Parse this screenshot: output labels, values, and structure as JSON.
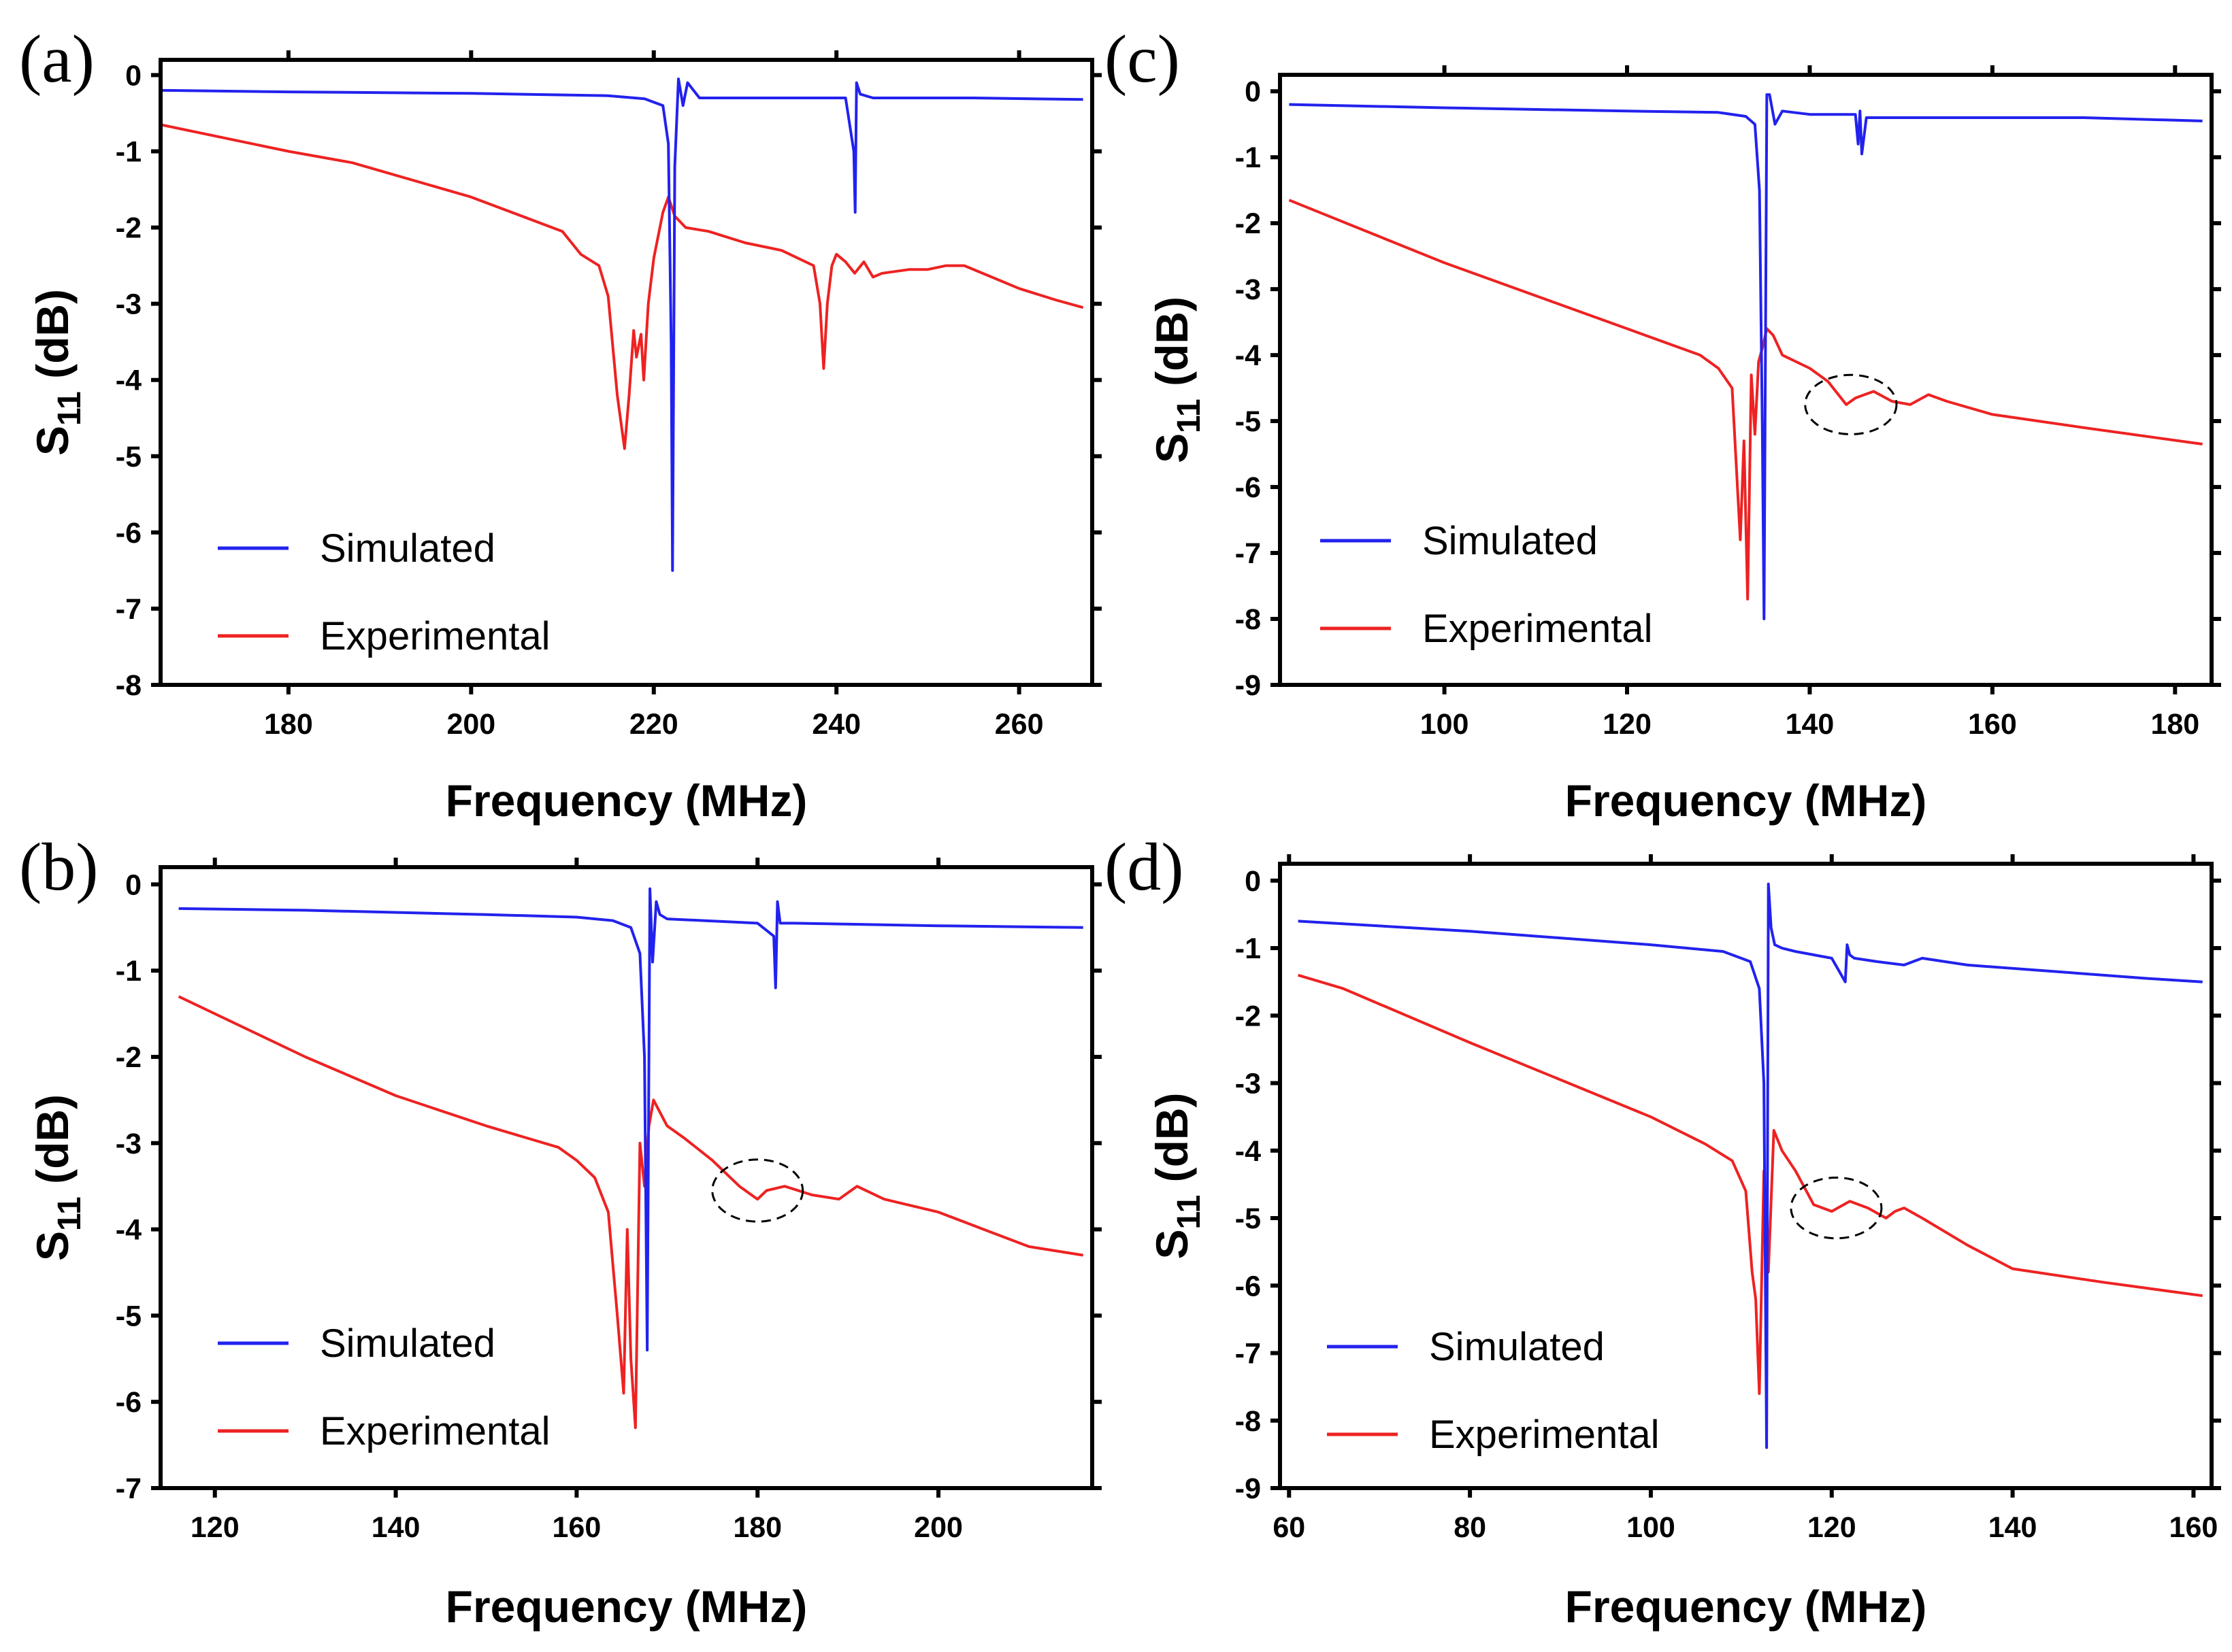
{
  "chart_data": [
    {
      "type": "line",
      "panel": "(a)",
      "xlabel": "Frequency (MHz)",
      "ylabel": "S11 (dB)",
      "ylabel_main": "S",
      "ylabel_sub": "11",
      "ylabel_unit": " (dB)",
      "xlim": [
        166,
        268
      ],
      "ylim": [
        -8,
        0.2
      ],
      "xticks": [
        180,
        200,
        220,
        240,
        260
      ],
      "yticks": [
        0,
        -1,
        -2,
        -3,
        -4,
        -5,
        -6,
        -7,
        -8
      ],
      "legend": "bottom-left",
      "series": [
        {
          "name": "Simulated",
          "color": "#2222ee",
          "x": [
            166,
            180,
            200,
            215,
            219,
            221,
            221.6,
            221.9,
            222.05,
            222.3,
            222.7,
            223.2,
            223.7,
            225,
            235,
            241,
            241.9,
            242.05,
            242.2,
            242.6,
            244,
            255,
            267
          ],
          "y": [
            -0.2,
            -0.22,
            -0.24,
            -0.27,
            -0.31,
            -0.4,
            -0.9,
            -3.5,
            -6.5,
            -1.2,
            -0.05,
            -0.4,
            -0.1,
            -0.3,
            -0.3,
            -0.3,
            -1.0,
            -1.8,
            -0.1,
            -0.25,
            -0.3,
            -0.3,
            -0.32
          ]
        },
        {
          "name": "Experimental",
          "color": "#ee2222",
          "x": [
            166,
            180,
            187,
            200,
            210,
            212,
            214,
            215,
            216,
            216.8,
            217.3,
            217.8,
            218.1,
            218.6,
            218.9,
            219.4,
            220,
            221,
            221.6,
            222.3,
            223.5,
            226,
            230,
            234,
            237.5,
            238.2,
            238.6,
            239,
            239.5,
            240,
            241,
            242,
            243,
            244,
            245,
            248,
            250,
            252,
            254,
            257,
            260,
            264,
            267
          ],
          "y": [
            -0.65,
            -1.0,
            -1.15,
            -1.6,
            -2.05,
            -2.35,
            -2.5,
            -2.9,
            -4.2,
            -4.9,
            -4.2,
            -3.35,
            -3.7,
            -3.4,
            -4.0,
            -3.0,
            -2.4,
            -1.8,
            -1.6,
            -1.85,
            -2.0,
            -2.05,
            -2.2,
            -2.3,
            -2.5,
            -3.0,
            -3.85,
            -3.0,
            -2.5,
            -2.35,
            -2.45,
            -2.6,
            -2.45,
            -2.65,
            -2.6,
            -2.55,
            -2.55,
            -2.5,
            -2.5,
            -2.65,
            -2.8,
            -2.95,
            -3.05
          ]
        }
      ],
      "annotations": []
    },
    {
      "type": "line",
      "panel": "(b)",
      "xlabel": "Frequency (MHz)",
      "ylabel": "S11 (dB)",
      "ylabel_main": "S",
      "ylabel_sub": "11",
      "ylabel_unit": " (dB)",
      "xlim": [
        114,
        217
      ],
      "ylim": [
        -7,
        0.2
      ],
      "xticks": [
        120,
        140,
        160,
        180,
        200
      ],
      "yticks": [
        0,
        -1,
        -2,
        -3,
        -4,
        -5,
        -6,
        -7
      ],
      "legend": "bottom-left",
      "series": [
        {
          "name": "Simulated",
          "color": "#2222ee",
          "x": [
            116,
            130,
            150,
            160,
            164,
            166,
            167,
            167.5,
            167.8,
            168.1,
            168.4,
            168.8,
            169.2,
            170,
            180,
            181.8,
            182,
            182.2,
            182.5,
            184,
            200,
            216
          ],
          "y": [
            -0.28,
            -0.3,
            -0.35,
            -0.38,
            -0.42,
            -0.5,
            -0.8,
            -2.0,
            -5.4,
            -0.05,
            -0.9,
            -0.2,
            -0.35,
            -0.4,
            -0.45,
            -0.6,
            -1.2,
            -0.2,
            -0.45,
            -0.45,
            -0.48,
            -0.5
          ]
        },
        {
          "name": "Experimental",
          "color": "#ee2222",
          "x": [
            116,
            130,
            140,
            150,
            158,
            160,
            162,
            163.5,
            164.5,
            165.2,
            165.6,
            166,
            166.5,
            167,
            167.5,
            168,
            168.5,
            169,
            170,
            172,
            175,
            178,
            180,
            181,
            183,
            186,
            189,
            191,
            194,
            200,
            205,
            210,
            216
          ],
          "y": [
            -1.3,
            -2.0,
            -2.45,
            -2.8,
            -3.05,
            -3.2,
            -3.4,
            -3.8,
            -5.0,
            -5.9,
            -4.0,
            -5.5,
            -6.3,
            -3.0,
            -3.5,
            -2.8,
            -2.5,
            -2.6,
            -2.8,
            -2.95,
            -3.2,
            -3.5,
            -3.65,
            -3.55,
            -3.5,
            -3.6,
            -3.65,
            -3.5,
            -3.65,
            -3.8,
            -4.0,
            -4.2,
            -4.3
          ]
        }
      ],
      "annotations": [
        {
          "type": "dashed-ellipse",
          "cx": 180,
          "cy": -3.55,
          "rx": 5,
          "ry": 0.36
        }
      ]
    },
    {
      "type": "line",
      "panel": "(c)",
      "xlabel": "Frequency (MHz)",
      "ylabel": "S11 (dB)",
      "ylabel_main": "S",
      "ylabel_sub": "11",
      "ylabel_unit": " (dB)",
      "xlim": [
        82,
        184
      ],
      "ylim": [
        -9,
        0.25
      ],
      "xticks": [
        100,
        120,
        140,
        160,
        180
      ],
      "yticks": [
        0,
        -1,
        -2,
        -3,
        -4,
        -5,
        -6,
        -7,
        -8,
        -9
      ],
      "legend": "bottom-left",
      "series": [
        {
          "name": "Simulated",
          "color": "#2222ee",
          "x": [
            83,
            100,
            120,
            130,
            133,
            134,
            134.5,
            134.8,
            135,
            135.3,
            135.6,
            136.2,
            137,
            140,
            145,
            145.3,
            145.5,
            145.7,
            146.2,
            150,
            170,
            183
          ],
          "y": [
            -0.2,
            -0.25,
            -0.3,
            -0.32,
            -0.38,
            -0.5,
            -1.5,
            -5.0,
            -8.0,
            -0.05,
            -0.05,
            -0.5,
            -0.3,
            -0.35,
            -0.35,
            -0.8,
            -0.3,
            -0.95,
            -0.4,
            -0.4,
            -0.4,
            -0.45
          ]
        },
        {
          "name": "Experimental",
          "color": "#ee2222",
          "x": [
            83,
            100,
            120,
            128,
            130,
            131.5,
            132.4,
            132.8,
            133.2,
            133.6,
            134,
            134.4,
            134.8,
            135.3,
            136,
            137,
            140,
            142,
            144,
            145,
            146,
            147,
            149,
            151,
            153,
            155,
            160,
            170,
            183
          ],
          "y": [
            -1.65,
            -2.6,
            -3.6,
            -4.0,
            -4.2,
            -4.5,
            -6.8,
            -5.3,
            -7.7,
            -4.3,
            -5.2,
            -4.1,
            -3.9,
            -3.6,
            -3.7,
            -4.0,
            -4.2,
            -4.4,
            -4.75,
            -4.65,
            -4.6,
            -4.55,
            -4.7,
            -4.75,
            -4.6,
            -4.7,
            -4.9,
            -5.1,
            -5.35
          ]
        }
      ],
      "annotations": [
        {
          "type": "dashed-ellipse",
          "cx": 144.5,
          "cy": -4.75,
          "rx": 5,
          "ry": 0.45
        }
      ]
    },
    {
      "type": "line",
      "panel": "(d)",
      "xlabel": "Frequency (MHz)",
      "ylabel": "S11 (dB)",
      "ylabel_main": "S",
      "ylabel_sub": "11",
      "ylabel_unit": " (dB)",
      "xlim": [
        59,
        162
      ],
      "ylim": [
        -9,
        0.25
      ],
      "xticks": [
        60,
        80,
        100,
        120,
        140,
        160
      ],
      "yticks": [
        0,
        -1,
        -2,
        -3,
        -4,
        -5,
        -6,
        -7,
        -8,
        -9
      ],
      "legend": "bottom-left",
      "series": [
        {
          "name": "Simulated",
          "color": "#2222ee",
          "x": [
            61,
            80,
            100,
            108,
            111,
            112,
            112.5,
            112.8,
            113,
            113.3,
            113.7,
            114.5,
            116,
            120,
            121.5,
            121.7,
            122,
            122.5,
            125,
            128,
            130,
            135,
            145,
            155,
            161
          ],
          "y": [
            -0.6,
            -0.75,
            -0.95,
            -1.05,
            -1.2,
            -1.6,
            -3.0,
            -8.4,
            -0.05,
            -0.7,
            -0.95,
            -1.0,
            -1.05,
            -1.15,
            -1.5,
            -0.95,
            -1.1,
            -1.15,
            -1.2,
            -1.25,
            -1.15,
            -1.25,
            -1.35,
            -1.45,
            -1.5
          ]
        },
        {
          "name": "Experimental",
          "color": "#ee2222",
          "x": [
            61,
            66,
            80,
            100,
            106,
            109,
            110.5,
            111.2,
            111.6,
            112,
            112.5,
            113,
            113.6,
            114.5,
            116,
            118,
            120,
            122,
            124,
            126,
            127,
            128,
            130,
            135,
            140,
            150,
            161
          ],
          "y": [
            -1.4,
            -1.6,
            -2.4,
            -3.5,
            -3.9,
            -4.15,
            -4.6,
            -5.8,
            -6.2,
            -7.6,
            -4.3,
            -5.8,
            -3.7,
            -4.0,
            -4.3,
            -4.8,
            -4.9,
            -4.75,
            -4.85,
            -5.0,
            -4.9,
            -4.85,
            -5.0,
            -5.4,
            -5.75,
            -5.95,
            -6.15
          ]
        }
      ],
      "annotations": [
        {
          "type": "dashed-ellipse",
          "cx": 120.5,
          "cy": -4.85,
          "rx": 5,
          "ry": 0.45
        }
      ]
    }
  ]
}
